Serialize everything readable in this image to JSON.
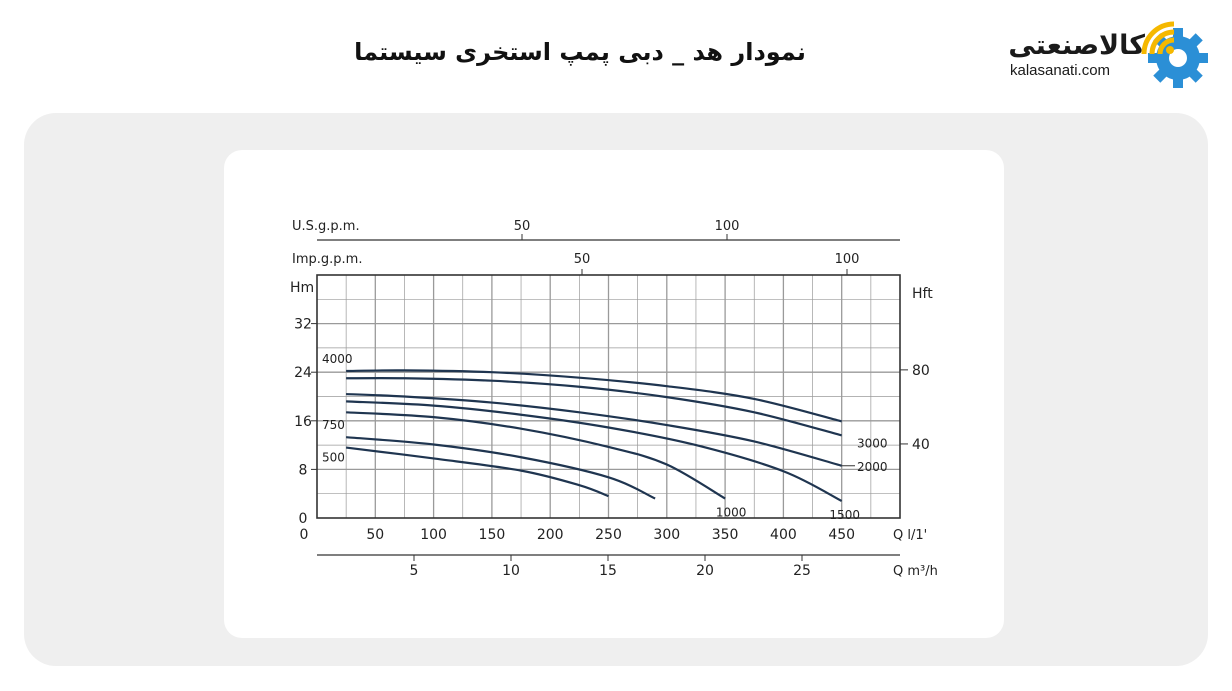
{
  "header": {
    "title": "نمودار هد _ دبی پمپ استخری سیستما",
    "logo_text": "کالاصنعتی",
    "logo_url": "kalasanati.com"
  },
  "colors": {
    "curve": "#1f3550",
    "grid": "#9a9a9a",
    "axis": "#333333",
    "logo_accent_blue": "#2b8fd6",
    "logo_accent_yellow": "#f5b800",
    "panel": "#efefef"
  },
  "chart_data": {
    "type": "line",
    "title": "",
    "x_primary": {
      "label": "Q l/1'",
      "ticks": [
        0,
        50,
        100,
        150,
        200,
        250,
        300,
        350,
        400,
        450
      ],
      "range": [
        0,
        500
      ]
    },
    "x_m3h": {
      "label": "Q m³/h",
      "ticks": [
        5,
        10,
        15,
        20,
        25
      ]
    },
    "x_usgpm": {
      "label": "U.S.g.p.m.",
      "ticks": [
        50,
        100
      ]
    },
    "x_impgpm": {
      "label": "Imp.g.p.m.",
      "ticks": [
        50,
        100
      ]
    },
    "y_left": {
      "label": "Hm",
      "ticks": [
        0,
        8,
        16,
        24,
        32
      ],
      "range": [
        0,
        40
      ]
    },
    "y_right": {
      "label": "Hft",
      "ticks": [
        40,
        80
      ]
    },
    "grid": true,
    "series": [
      {
        "name": "4000",
        "x": [
          25,
          75,
          150,
          225,
          300,
          375,
          450
        ],
        "y": [
          24.2,
          24.3,
          24.0,
          23.1,
          21.7,
          19.6,
          15.9
        ]
      },
      {
        "name": "3000",
        "x": [
          25,
          75,
          150,
          225,
          300,
          375,
          450
        ],
        "y": [
          23.0,
          23.0,
          22.6,
          21.6,
          19.9,
          17.4,
          13.6
        ]
      },
      {
        "name": "2000",
        "x": [
          25,
          75,
          150,
          225,
          300,
          375,
          450
        ],
        "y": [
          20.4,
          20.0,
          19.0,
          17.4,
          15.3,
          12.6,
          8.6
        ]
      },
      {
        "name": "1500",
        "x": [
          25,
          100,
          175,
          250,
          325,
          400,
          450
        ],
        "y": [
          19.2,
          18.5,
          17.0,
          14.9,
          12.0,
          7.7,
          2.8
        ]
      },
      {
        "name": "1000",
        "x": [
          25,
          100,
          175,
          250,
          300,
          350
        ],
        "y": [
          17.4,
          16.6,
          14.7,
          11.7,
          8.8,
          3.2
        ]
      },
      {
        "name": "750",
        "x": [
          25,
          100,
          175,
          250,
          290
        ],
        "y": [
          13.3,
          12.1,
          10.0,
          6.7,
          3.2
        ]
      },
      {
        "name": "500",
        "x": [
          25,
          100,
          175,
          225,
          250
        ],
        "y": [
          11.6,
          9.8,
          7.8,
          5.4,
          3.6
        ]
      }
    ]
  }
}
